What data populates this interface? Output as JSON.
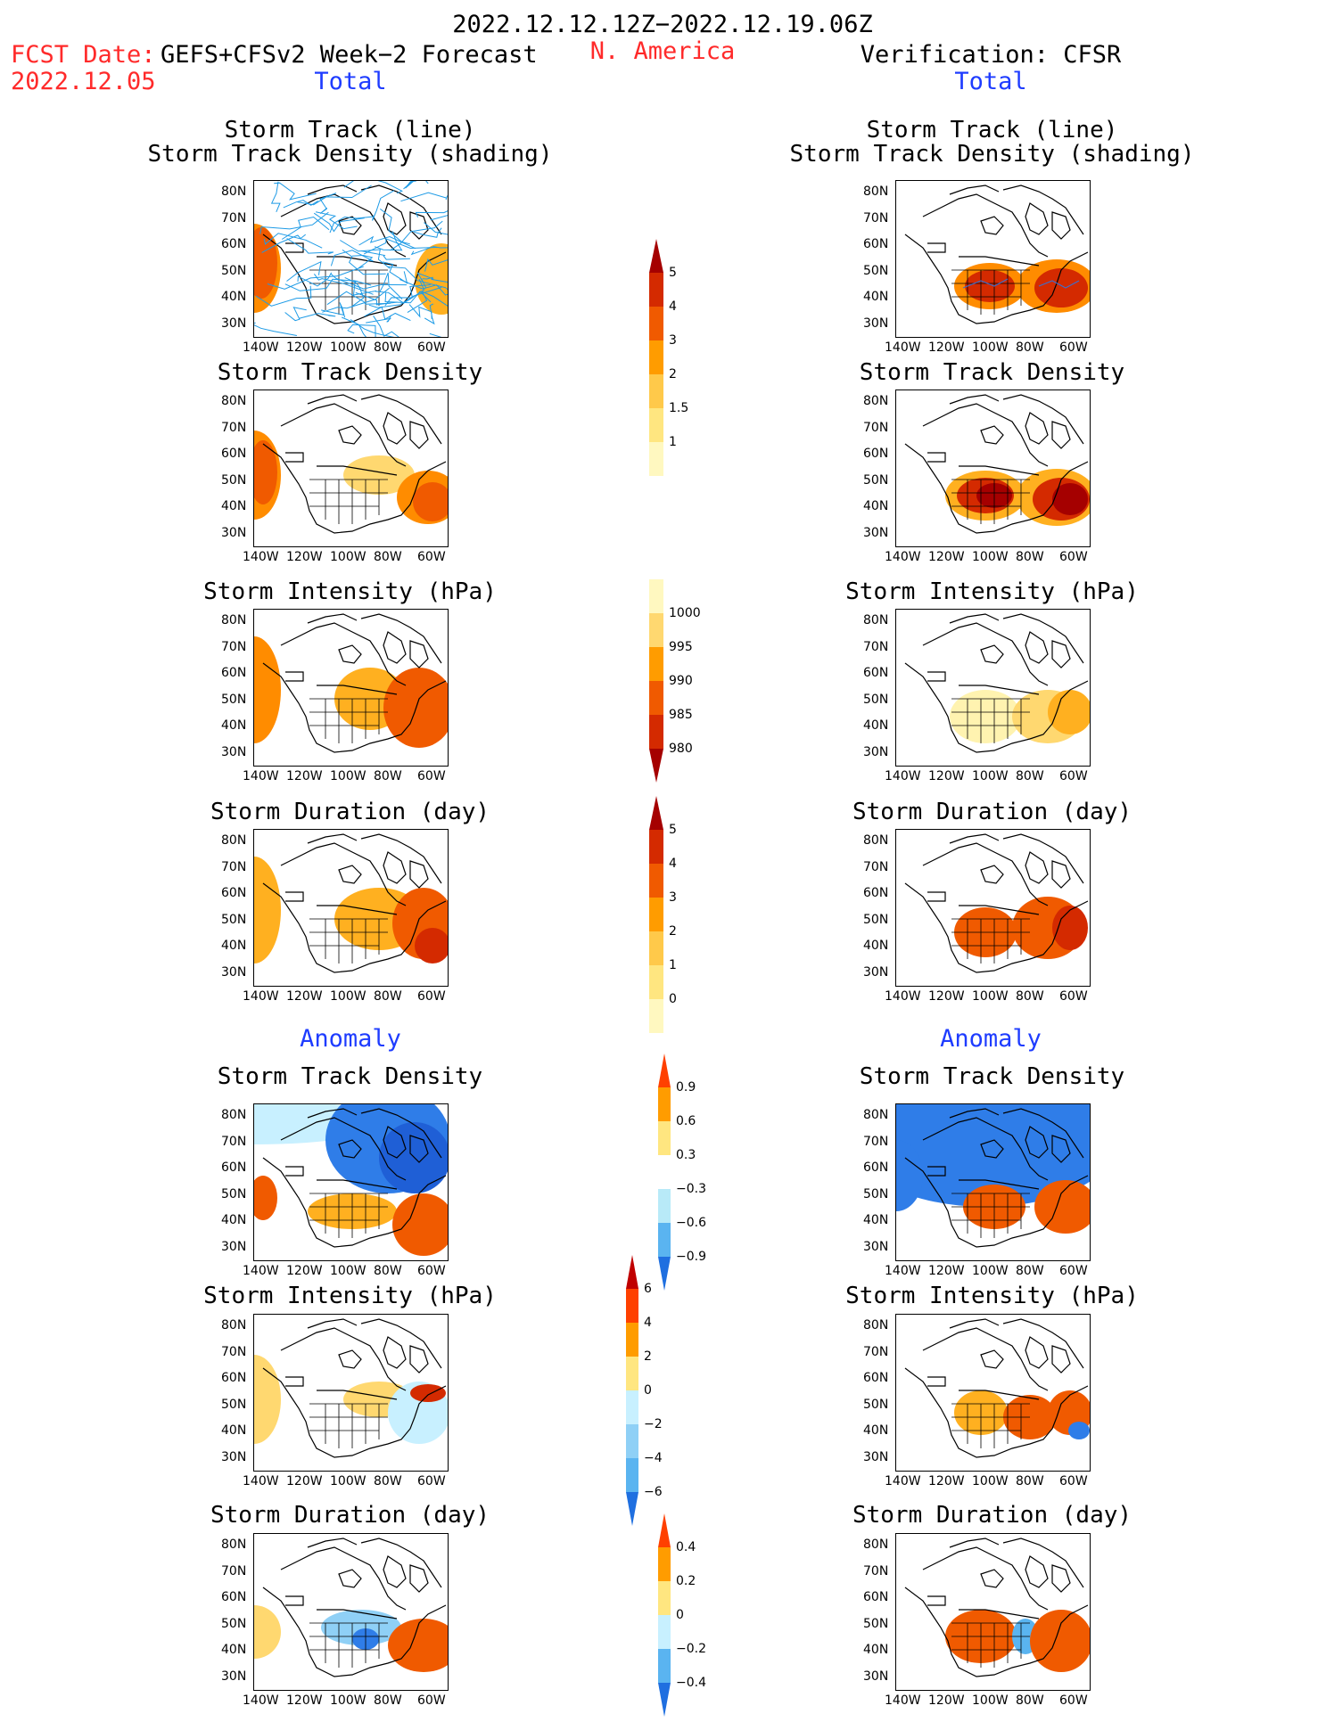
{
  "header": {
    "period": "2022.12.12.12Z−2022.12.19.06Z",
    "fcst_prefix": "FCST Date:",
    "forecast_name": "GEFS+CFSv2 Week−2 Forecast",
    "fcst_date": "2022.12.05",
    "region": "N. America",
    "verification": "Verification: CFSR"
  },
  "sections": {
    "total": "Total",
    "anomaly": "Anomaly"
  },
  "titles": {
    "storm_track_line": "Storm Track (line)",
    "storm_track_density_shading": "Storm Track Density (shading)",
    "storm_track_density": "Storm Track Density",
    "storm_intensity": "Storm Intensity (hPa)",
    "storm_duration": "Storm Duration (day)"
  },
  "axes": {
    "lat_ticks": [
      "80N",
      "70N",
      "60N",
      "50N",
      "40N",
      "30N"
    ],
    "lon_ticks": [
      "140W",
      "120W",
      "100W",
      "80W",
      "60W"
    ]
  },
  "colorbars": [
    {
      "id": "total-density",
      "labels": [
        "5",
        "4",
        "3",
        "2",
        "1.5",
        "1"
      ],
      "colors": [
        "#a50000",
        "#d42a00",
        "#f05a00",
        "#ff9c00",
        "#ffc94a",
        "#ffe680",
        "#fff8c0"
      ],
      "tail": "bottom"
    },
    {
      "id": "total-intensity",
      "labels": [
        "1000",
        "995",
        "990",
        "985",
        "980"
      ],
      "colors": [
        "#fff8c0",
        "#ffd870",
        "#ff9c00",
        "#f05a00",
        "#d42a00",
        "#a50000"
      ],
      "tail": "top"
    },
    {
      "id": "total-duration",
      "labels": [
        "5",
        "4",
        "3",
        "2",
        "1",
        "0"
      ],
      "colors": [
        "#a50000",
        "#d42a00",
        "#f05a00",
        "#ff9c00",
        "#ffc94a",
        "#ffe680",
        "#fff8c0"
      ],
      "tail": "bottom"
    },
    {
      "id": "anom-density",
      "labels": [
        "0.9",
        "0.6",
        "0.3",
        "−0.3",
        "−0.6",
        "−0.9"
      ],
      "colors": [
        "#ff4000",
        "#ff9c00",
        "#ffe680",
        "#ffffff",
        "#b8eaf8",
        "#5ab4f0",
        "#1f6fe0"
      ]
    },
    {
      "id": "anom-intensity",
      "labels": [
        "6",
        "4",
        "2",
        "0",
        "−2",
        "−4",
        "−6"
      ],
      "colors": [
        "#c00000",
        "#ff4000",
        "#ff9c00",
        "#ffe680",
        "#c8f0ff",
        "#8fd0f6",
        "#5ab4f0",
        "#1f6fe0"
      ]
    },
    {
      "id": "anom-duration",
      "labels": [
        "0.4",
        "0.2",
        "0",
        "−0.2",
        "−0.4"
      ],
      "colors": [
        "#ff4000",
        "#ff9c00",
        "#ffe680",
        "#c8f0ff",
        "#5ab4f0",
        "#1f6fe0"
      ]
    }
  ],
  "colors": {
    "red_text": "#ff2a2a",
    "blue_text": "#1e3cff",
    "track_line": "#1e9be6"
  }
}
